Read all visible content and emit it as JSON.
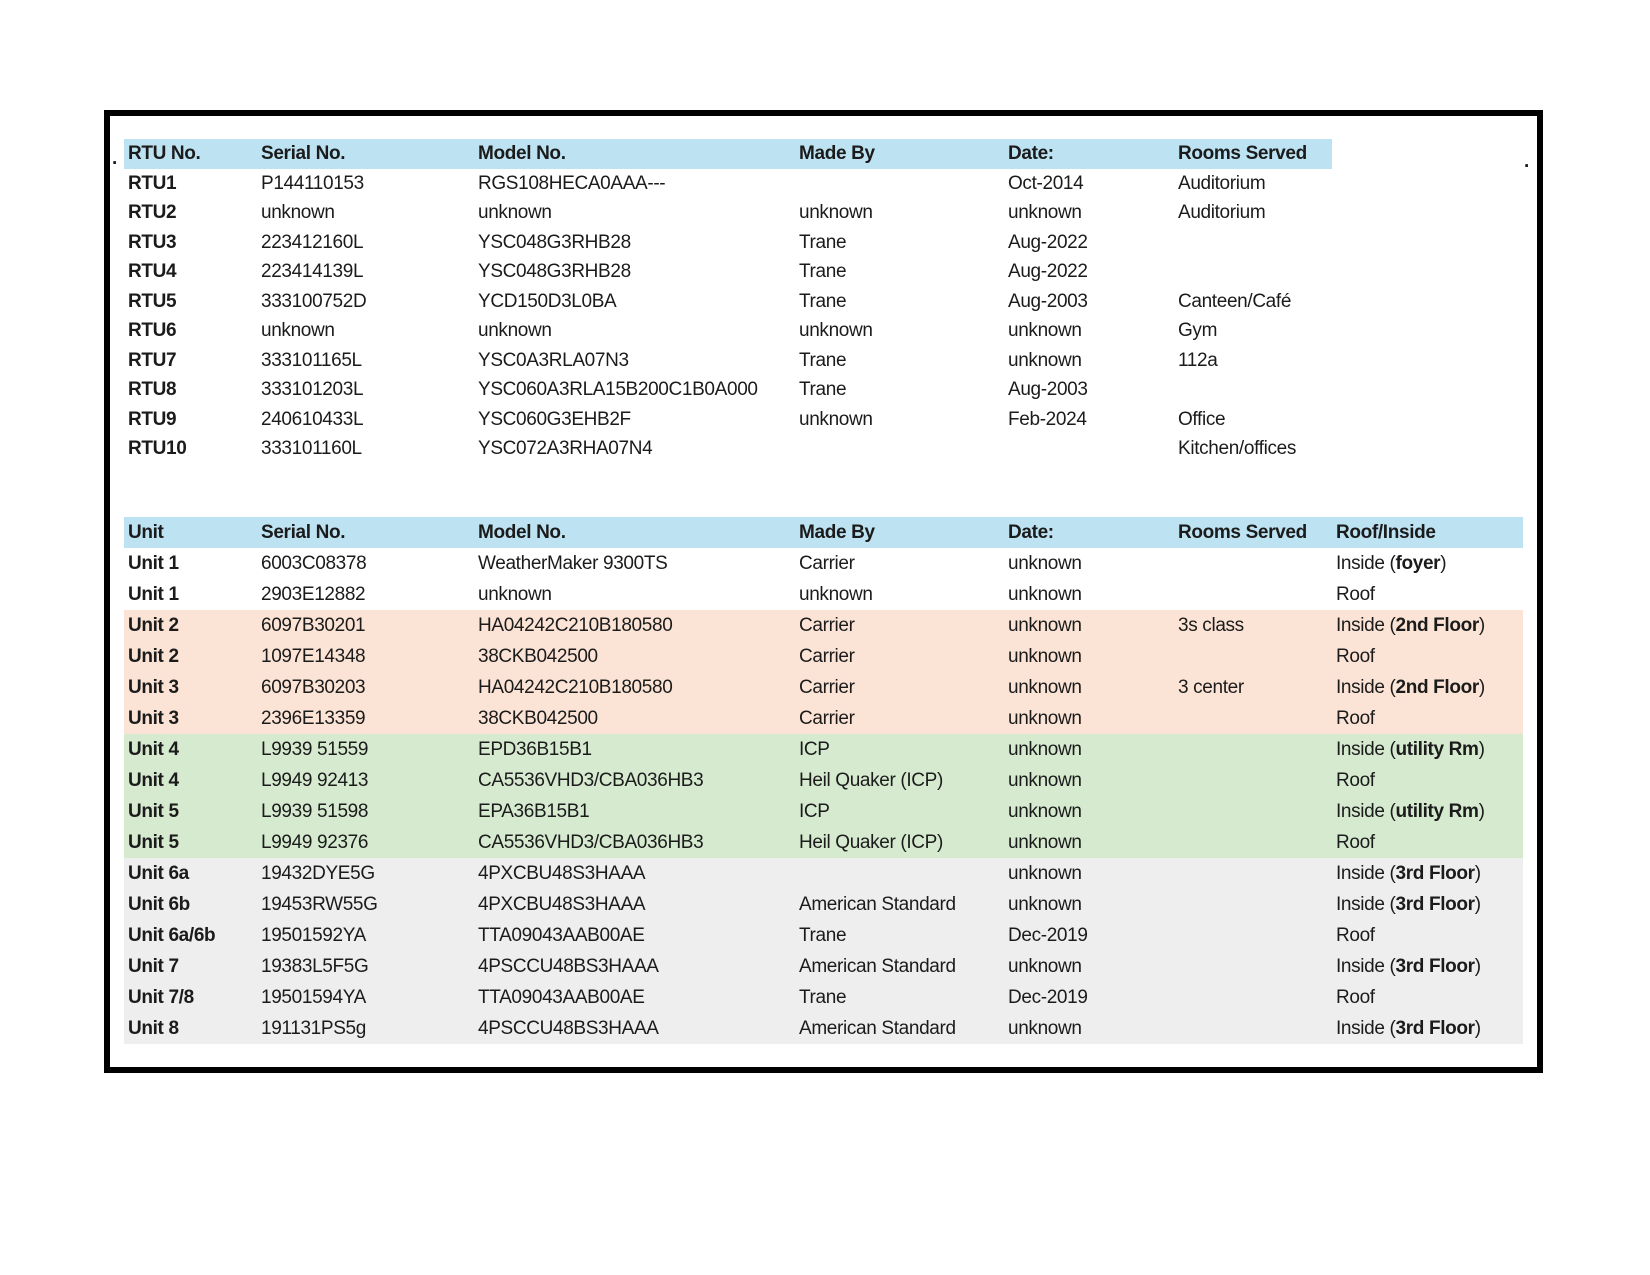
{
  "page": {
    "stray_dot_left": ".",
    "stray_dot_right": "."
  },
  "colors": {
    "header_blue": "#bde3f3",
    "peach": "#fbe4d5",
    "green": "#d6ead0",
    "gray": "#eeeeee",
    "text": "#1b1b1b",
    "border": "#000000"
  },
  "rtu_table": {
    "headers": [
      "RTU No.",
      "Serial No.",
      "Model No.",
      "Made By",
      "Date:",
      "Rooms Served"
    ],
    "rows": [
      {
        "unit": "RTU1",
        "serial": "P144110153",
        "model": "RGS108HECA0AAA---",
        "made_by": "",
        "date": "Oct-2014",
        "rooms": "Auditorium"
      },
      {
        "unit": "RTU2",
        "serial": "unknown",
        "model": "unknown",
        "made_by": "unknown",
        "date": "unknown",
        "rooms": "Auditorium"
      },
      {
        "unit": "RTU3",
        "serial": "223412160L",
        "model": "YSC048G3RHB28",
        "made_by": "Trane",
        "date": "Aug-2022",
        "rooms": ""
      },
      {
        "unit": "RTU4",
        "serial": "223414139L",
        "model": "YSC048G3RHB28",
        "made_by": "Trane",
        "date": "Aug-2022",
        "rooms": ""
      },
      {
        "unit": "RTU5",
        "serial": "333100752D",
        "model": "YCD150D3L0BA",
        "made_by": "Trane",
        "date": "Aug-2003",
        "rooms": "Canteen/Café"
      },
      {
        "unit": "RTU6",
        "serial": "unknown",
        "model": "unknown",
        "made_by": "unknown",
        "date": "unknown",
        "rooms": "Gym"
      },
      {
        "unit": "RTU7",
        "serial": "333101165L",
        "model": "YSC0A3RLA07N3",
        "made_by": "Trane",
        "date": "unknown",
        "rooms": "112a"
      },
      {
        "unit": "RTU8",
        "serial": "333101203L",
        "model": "YSC060A3RLA15B200C1B0A000",
        "made_by": "Trane",
        "date": "Aug-2003",
        "rooms": ""
      },
      {
        "unit": "RTU9",
        "serial": "240610433L",
        "model": "YSC060G3EHB2F",
        "made_by": "unknown",
        "date": "Feb-2024",
        "rooms": "Office"
      },
      {
        "unit": "RTU10",
        "serial": "333101160L",
        "model": "YSC072A3RHA07N4",
        "made_by": "",
        "date": "",
        "rooms": "Kitchen/offices"
      }
    ]
  },
  "unit_table": {
    "headers": [
      "Unit",
      "Serial No.",
      "Model No.",
      "Made By",
      "Date:",
      "Rooms Served",
      "Roof/Inside"
    ],
    "rows": [
      {
        "band": "white",
        "unit": "Unit 1",
        "serial": "6003C08378",
        "model": "WeatherMaker 9300TS",
        "made_by": "Carrier",
        "date": "unknown",
        "rooms": "",
        "loc_pre": "Inside (",
        "loc_bold": "foyer",
        "loc_post": ")"
      },
      {
        "band": "white",
        "unit": "Unit 1",
        "serial": "2903E12882",
        "model": "unknown",
        "made_by": "unknown",
        "date": "unknown",
        "rooms": "",
        "loc_pre": "Roof",
        "loc_bold": "",
        "loc_post": ""
      },
      {
        "band": "peach",
        "unit": "Unit 2",
        "serial": "6097B30201",
        "model": "HA04242C210B180580",
        "made_by": "Carrier",
        "date": "unknown",
        "rooms": "3s class",
        "loc_pre": "Inside (",
        "loc_bold": "2nd Floor",
        "loc_post": ")"
      },
      {
        "band": "peach",
        "unit": "Unit 2",
        "serial": "1097E14348",
        "model": "38CKB042500",
        "made_by": "Carrier",
        "date": "unknown",
        "rooms": "",
        "loc_pre": "Roof",
        "loc_bold": "",
        "loc_post": ""
      },
      {
        "band": "peach",
        "unit": "Unit 3",
        "serial": "6097B30203",
        "model": "HA04242C210B180580",
        "made_by": "Carrier",
        "date": "unknown",
        "rooms": "3 center",
        "loc_pre": "Inside (",
        "loc_bold": "2nd Floor",
        "loc_post": ")"
      },
      {
        "band": "peach",
        "unit": "Unit 3",
        "serial": "2396E13359",
        "model": "38CKB042500",
        "made_by": "Carrier",
        "date": "unknown",
        "rooms": "",
        "loc_pre": "Roof",
        "loc_bold": "",
        "loc_post": ""
      },
      {
        "band": "green",
        "unit": "Unit 4",
        "serial": "L9939 51559",
        "model": "EPD36B15B1",
        "made_by": "ICP",
        "date": "unknown",
        "rooms": "",
        "loc_pre": "Inside (",
        "loc_bold": "utility Rm",
        "loc_post": ")"
      },
      {
        "band": "green",
        "unit": "Unit 4",
        "serial": "L9949 92413",
        "model": "CA5536VHD3/CBA036HB3",
        "made_by": "Heil Quaker (ICP)",
        "date": "unknown",
        "rooms": "",
        "loc_pre": "Roof",
        "loc_bold": "",
        "loc_post": ""
      },
      {
        "band": "green",
        "unit": "Unit 5",
        "serial": "L9939 51598",
        "model": "EPA36B15B1",
        "made_by": "ICP",
        "date": "unknown",
        "rooms": "",
        "loc_pre": "Inside (",
        "loc_bold": "utility Rm",
        "loc_post": ")"
      },
      {
        "band": "green",
        "unit": "Unit 5",
        "serial": "L9949 92376",
        "model": "CA5536VHD3/CBA036HB3",
        "made_by": "Heil Quaker (ICP)",
        "date": "unknown",
        "rooms": "",
        "loc_pre": "Roof",
        "loc_bold": "",
        "loc_post": ""
      },
      {
        "band": "gray",
        "unit": "Unit 6a",
        "serial": "19432DYE5G",
        "model": "4PXCBU48S3HAAA",
        "made_by": "",
        "date": "unknown",
        "rooms": "",
        "loc_pre": "Inside (",
        "loc_bold": "3rd Floor",
        "loc_post": ")"
      },
      {
        "band": "gray",
        "unit": "Unit 6b",
        "serial": "19453RW55G",
        "model": "4PXCBU48S3HAAA",
        "made_by": "American Standard",
        "date": "unknown",
        "rooms": "",
        "loc_pre": "Inside (",
        "loc_bold": "3rd Floor",
        "loc_post": ")"
      },
      {
        "band": "gray",
        "unit": "Unit 6a/6b",
        "serial": "19501592YA",
        "model": "TTA09043AAB00AE",
        "made_by": "Trane",
        "date": "Dec-2019",
        "rooms": "",
        "loc_pre": "Roof",
        "loc_bold": "",
        "loc_post": ""
      },
      {
        "band": "gray",
        "unit": "Unit 7",
        "serial": "19383L5F5G",
        "model": "4PSCCU48BS3HAAA",
        "made_by": "American Standard",
        "date": "unknown",
        "rooms": "",
        "loc_pre": "Inside (",
        "loc_bold": "3rd Floor",
        "loc_post": ")"
      },
      {
        "band": "gray",
        "unit": "Unit 7/8",
        "serial": "19501594YA",
        "model": "TTA09043AAB00AE",
        "made_by": "Trane",
        "date": "Dec-2019",
        "rooms": "",
        "loc_pre": "Roof",
        "loc_bold": "",
        "loc_post": ""
      },
      {
        "band": "gray",
        "unit": "Unit 8",
        "serial": "191131PS5g",
        "model": "4PSCCU48BS3HAAA",
        "made_by": "American Standard",
        "date": "unknown",
        "rooms": "",
        "loc_pre": "Inside (",
        "loc_bold": "3rd Floor",
        "loc_post": ")"
      }
    ]
  }
}
